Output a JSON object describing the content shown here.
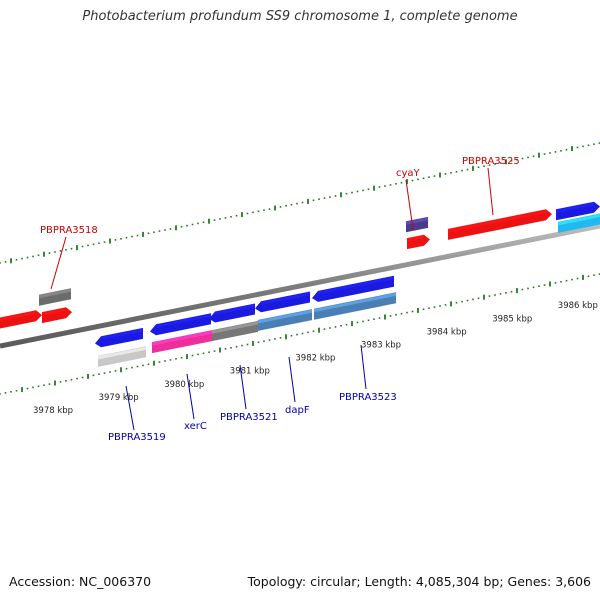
{
  "title": "Photobacterium profundum SS9 chromosome 1, complete genome",
  "footer": {
    "accession": "Accession: NC_006370",
    "summary": "Topology: circular; Length: 4,085,304 bp; Genes: 3,606"
  },
  "colors": {
    "backbone": "#8a8a8a",
    "tick": "#1f7a1f",
    "label_forward": "#cc0000",
    "label_reverse": "#0000aa"
  },
  "scale": {
    "unit": "kbp",
    "labels": [
      {
        "text": "3978 kbp",
        "kbp": 3978
      },
      {
        "text": "3979 kbp",
        "kbp": 3979
      },
      {
        "text": "3980 kbp",
        "kbp": 3980
      },
      {
        "text": "3981 kbp",
        "kbp": 3981
      },
      {
        "text": "3982 kbp",
        "kbp": 3982
      },
      {
        "text": "3983 kbp",
        "kbp": 3983
      },
      {
        "text": "3984 kbp",
        "kbp": 3984
      },
      {
        "text": "3985 kbp",
        "kbp": 3985
      },
      {
        "text": "3986 kbp",
        "kbp": 3986
      }
    ]
  },
  "genes": [
    {
      "id": "g1",
      "strand": "+",
      "color": "#ee1111",
      "label": ""
    },
    {
      "id": "g2",
      "strand": "+",
      "color": "#ee1111",
      "label": "PBPRA3518"
    },
    {
      "id": "g3",
      "strand": "-",
      "color": "#1a1ae0",
      "label": "PBPRA3519"
    },
    {
      "id": "g4",
      "strand": "-",
      "color": "#1a1ae0",
      "label": "xerC"
    },
    {
      "id": "g5",
      "strand": "-",
      "color": "#1a1ae0",
      "label": "PBPRA3521"
    },
    {
      "id": "g6",
      "strand": "-",
      "color": "#1a1ae0",
      "label": "dapF"
    },
    {
      "id": "g7",
      "strand": "-",
      "color": "#1a1ae0",
      "label": "PBPRA3523"
    },
    {
      "id": "g8",
      "strand": "+",
      "color": "#ee1111",
      "label": "cyaY"
    },
    {
      "id": "g9",
      "strand": "+",
      "color": "#ee1111",
      "label": "PBPRA3525"
    },
    {
      "id": "g10",
      "strand": "+",
      "color": "#1a1ae0",
      "label": ""
    }
  ],
  "cog_bars": [
    {
      "gene": "g2",
      "color": "#6b6b6b"
    },
    {
      "gene": "g3",
      "color": "#c8c8c8"
    },
    {
      "gene": "g4",
      "color": "#ee2f9a"
    },
    {
      "gene": "g5",
      "color": "#777777"
    },
    {
      "gene": "g6",
      "color": "#4a7fb5"
    },
    {
      "gene": "g7",
      "color": "#4a7fb5"
    },
    {
      "gene": "g8",
      "color": "#4b3b8f"
    },
    {
      "gene": "g10",
      "color": "#22b8f0"
    }
  ]
}
